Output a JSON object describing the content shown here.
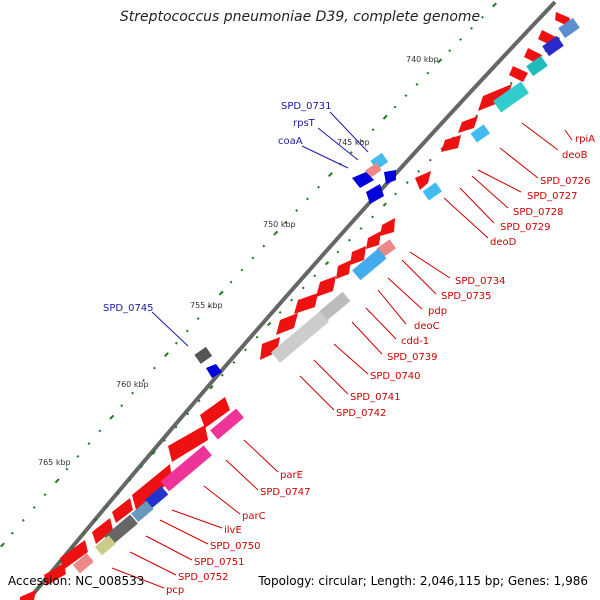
{
  "header": {
    "title": "Streptococcus pneumoniae D39, complete genome"
  },
  "footer": {
    "accession": "Accession: NC_008533",
    "summary": "Topology: circular; Length: 2,046,115 bp; Genes: 1,986"
  },
  "colors": {
    "forward_gene": "#ee1111",
    "reverse_gene": "#0000dd",
    "label_red": "#cc0000",
    "label_blue": "#1a1aa6",
    "backbone": "#666666",
    "tick": "#1d7a1d",
    "tick_label": "#333333"
  },
  "scale_labels": [
    "740 kbp",
    "745 kbp",
    "750 kbp",
    "755 kbp",
    "760 kbp",
    "765 kbp"
  ],
  "labels_red": [
    "rpiA",
    "deoB",
    "SPD_0726",
    "SPD_0727",
    "SPD_0728",
    "SPD_0729",
    "deoD",
    "SPD_0734",
    "SPD_0735",
    "pdp",
    "deoC",
    "cdd-1",
    "SPD_0739",
    "SPD_0740",
    "SPD_0741",
    "SPD_0742",
    "parE",
    "SPD_0747",
    "parC",
    "ilvE",
    "SPD_0750",
    "SPD_0751",
    "SPD_0752",
    "pcp"
  ],
  "labels_blue": [
    "SPD_0731",
    "rpsT",
    "coaA",
    "SPD_0745"
  ]
}
